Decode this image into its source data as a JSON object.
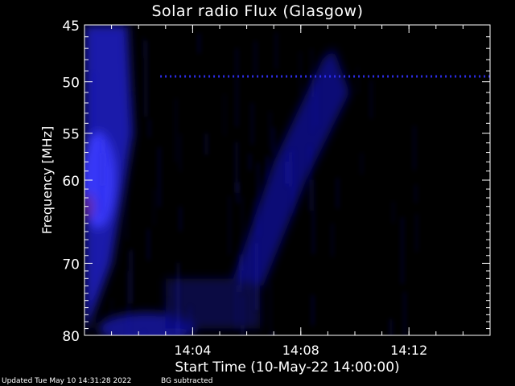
{
  "chart_data": {
    "type": "heatmap",
    "title": "Solar radio Flux (Glasgow)",
    "xlabel": "Start Time (10-May-22 14:00:00)",
    "ylabel": "Frequency [MHz]",
    "x_tick_labels": [
      "14:04",
      "14:08",
      "14:12"
    ],
    "x_tick_minutes": [
      4,
      8,
      12
    ],
    "x_range_minutes": [
      0,
      15
    ],
    "y_tick_labels": [
      "45",
      "50",
      "55",
      "60",
      "70",
      "80"
    ],
    "y_tick_values": [
      45,
      50,
      55,
      60,
      70,
      80
    ],
    "y_range": [
      45,
      80
    ],
    "y_scale": "log",
    "colormap": [
      "#000000",
      "#1a1ad9",
      "#5050ff"
    ],
    "background": "#000000"
  },
  "footer": {
    "updated": "Updated Tue May 10 14:31:28 2022",
    "note": "BG subtracted"
  }
}
